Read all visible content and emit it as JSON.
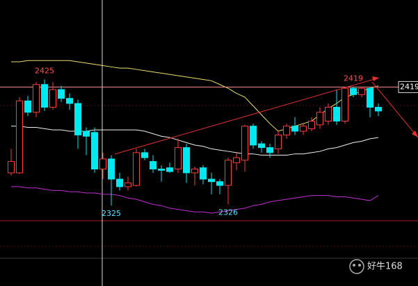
{
  "chart_data": {
    "type": "candlestick",
    "open": [
      2351,
      2351,
      2408,
      2399,
      2421,
      2403,
      2417,
      2410,
      2406,
      2384,
      2383,
      2354,
      2362,
      2346,
      2340,
      2341,
      2367,
      2360,
      2354,
      2355,
      2354,
      2371,
      2351,
      2355,
      2346,
      2344,
      2341,
      2359,
      2361,
      2388,
      2374,
      2371,
      2370,
      2381,
      2388,
      2384,
      2386,
      2389,
      2392,
      2403,
      2392,
      2418,
      2413,
      2418,
      2403
    ],
    "close": [
      2360,
      2408,
      2399,
      2421,
      2403,
      2417,
      2410,
      2406,
      2381,
      2380,
      2354,
      2362,
      2346,
      2340,
      2343,
      2367,
      2363,
      2354,
      2353,
      2352,
      2371,
      2351,
      2354,
      2346,
      2344,
      2341,
      2361,
      2363,
      2388,
      2373,
      2371,
      2367,
      2381,
      2388,
      2384,
      2388,
      2392,
      2399,
      2403,
      2392,
      2418,
      2413,
      2418,
      2403,
      2400
    ],
    "high": [
      2370,
      2411,
      2412,
      2423,
      2425,
      2423,
      2420,
      2414,
      2409,
      2387,
      2387,
      2367,
      2365,
      2351,
      2348,
      2370,
      2370,
      2365,
      2357,
      2359,
      2378,
      2374,
      2356,
      2357,
      2351,
      2346,
      2363,
      2367,
      2389,
      2390,
      2376,
      2374,
      2384,
      2390,
      2395,
      2390,
      2395,
      2403,
      2406,
      2417,
      2419,
      2419,
      2419,
      2419,
      2406
    ],
    "low": [
      2349,
      2350,
      2396,
      2395,
      2400,
      2401,
      2407,
      2401,
      2370,
      2365,
      2351,
      2346,
      2325,
      2337,
      2337,
      2340,
      2361,
      2351,
      2344,
      2351,
      2351,
      2343,
      2341,
      2342,
      2334,
      2334,
      2326,
      2353,
      2352,
      2370,
      2367,
      2363,
      2366,
      2378,
      2381,
      2381,
      2384,
      2386,
      2389,
      2389,
      2390,
      2411,
      2411,
      2395,
      2396
    ],
    "bands": [
      {
        "name": "upper",
        "color": "#e8e070",
        "values": [
          2439,
          2439,
          2440,
          2440,
          2440,
          2440,
          2440,
          2440,
          2439,
          2438,
          2437,
          2436,
          2435,
          2434,
          2434,
          2433,
          2432,
          2431,
          2430,
          2429,
          2428,
          2427,
          2426,
          2425,
          2424,
          2421,
          2418,
          2414,
          2411,
          2404,
          2397,
          2390,
          2384,
          2386,
          2388,
          2390,
          2392,
          2397,
          2402,
          2406,
          2411,
          2413,
          2416,
          2418,
          2420
        ]
      },
      {
        "name": "mid",
        "color": "#f0f0f0",
        "values": [
          2388,
          2388,
          2387,
          2387,
          2386,
          2385,
          2385,
          2384,
          2384,
          2384,
          2385,
          2385,
          2385,
          2385,
          2385,
          2385,
          2384,
          2382,
          2380,
          2379,
          2377,
          2375,
          2373,
          2372,
          2370,
          2369,
          2368,
          2367,
          2366,
          2366,
          2365,
          2365,
          2365,
          2365,
          2366,
          2366,
          2367,
          2368,
          2370,
          2371,
          2373,
          2375,
          2376,
          2378,
          2379
        ]
      },
      {
        "name": "lower",
        "color": "#c030d0",
        "values": [
          2340,
          2340,
          2339,
          2339,
          2338,
          2337,
          2337,
          2336,
          2336,
          2335,
          2335,
          2334,
          2334,
          2333,
          2331,
          2330,
          2328,
          2326,
          2325,
          2323,
          2322,
          2321,
          2320,
          2320,
          2319,
          2320,
          2321,
          2322,
          2323,
          2325,
          2326,
          2328,
          2329,
          2330,
          2331,
          2332,
          2333,
          2333,
          2333,
          2332,
          2332,
          2331,
          2330,
          2329,
          2333
        ]
      }
    ],
    "up_color": "#ff3b3b",
    "down_color": "#00e8f0",
    "ylim": [
      2313,
      2488
    ],
    "price_line": 2419,
    "watermark": "好牛168"
  }
}
